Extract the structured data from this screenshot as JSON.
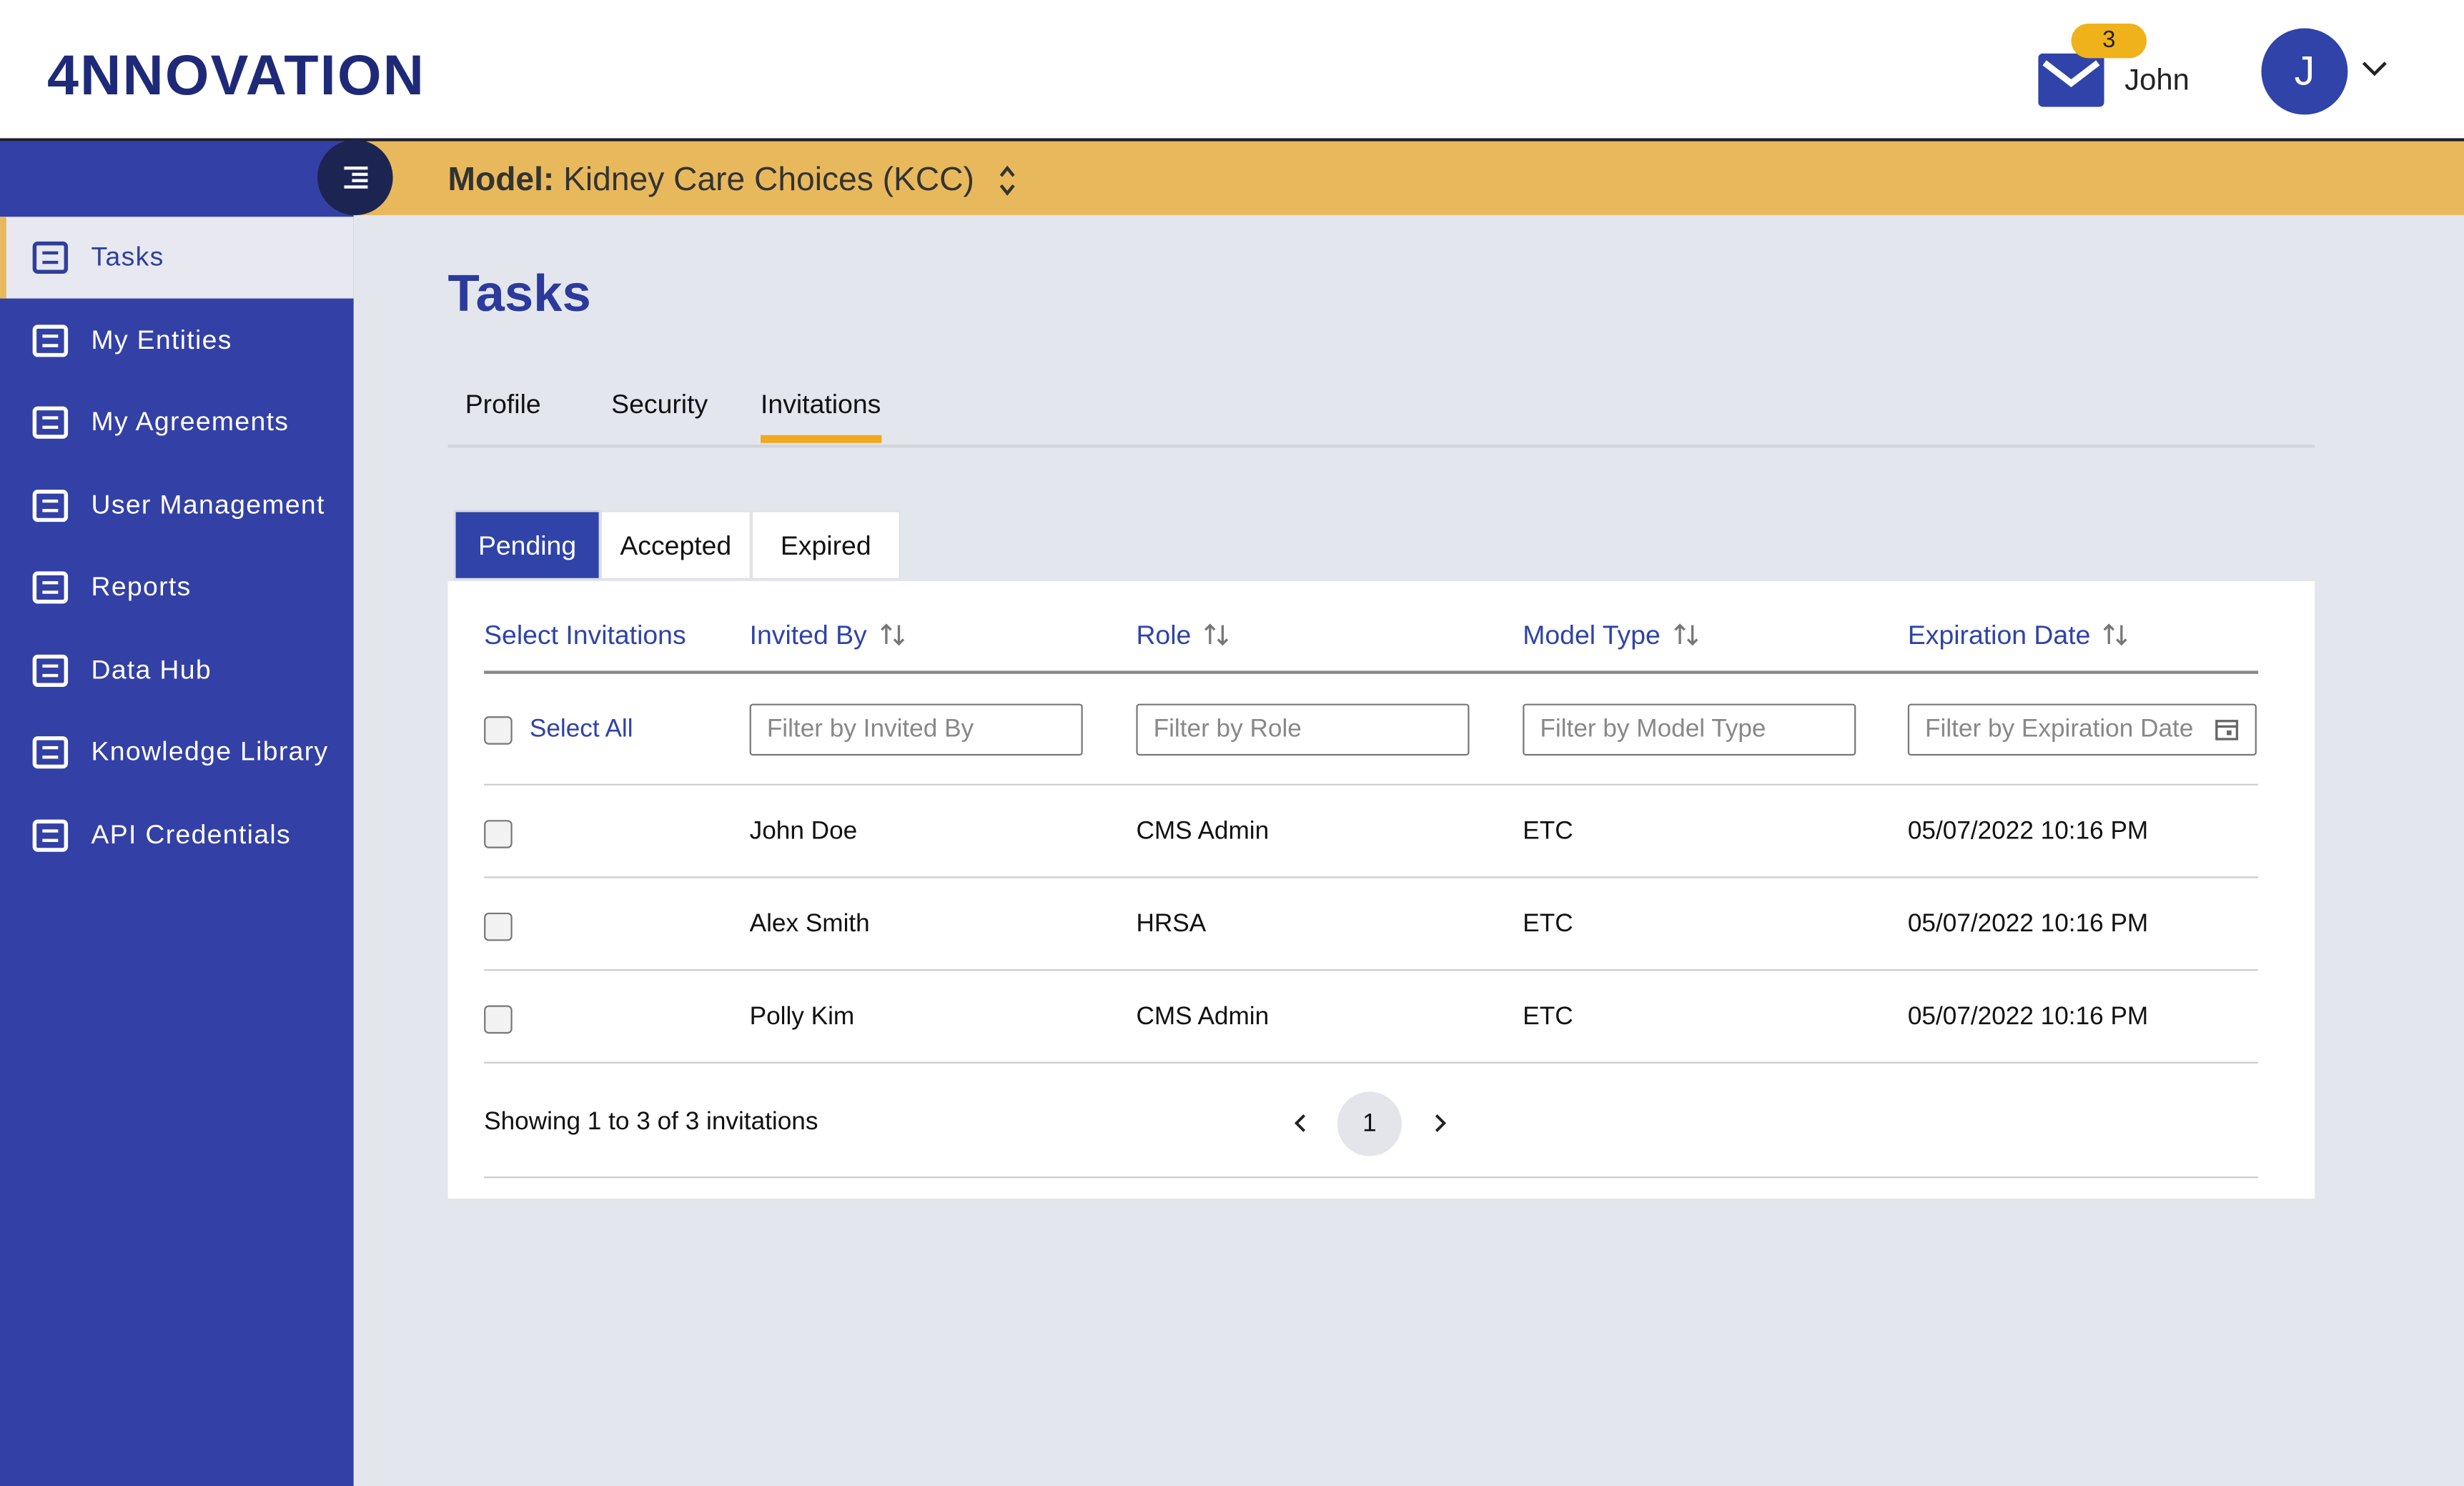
{
  "header": {
    "logo": "4NNOVATION",
    "notification_count": 3,
    "user_name": "John",
    "avatar": "J"
  },
  "sidebar": {
    "items": [
      "Tasks",
      "My Entities",
      "My Agreements",
      "User Management",
      "Reports",
      "Data Hub",
      "Knowledge Library",
      "API Credentials"
    ],
    "active": 0
  },
  "model_bar": {
    "label": "Model:",
    "value": "Kidney Care Choices (KCC)"
  },
  "page": {
    "title": "Tasks",
    "tabs": [
      "Profile",
      "Security",
      "Invitations"
    ],
    "active_tab": 2,
    "subtabs": [
      "Pending",
      "Accepted",
      "Expired"
    ],
    "active_subtab": 0
  },
  "table": {
    "columns": [
      "Select Invitations",
      "Invited By",
      "Role",
      "Model Type",
      "Expiration Date"
    ],
    "select_all": "Select All",
    "filters": [
      "Filter by Invited By",
      "Filter by Role",
      "Filter by Model Type",
      "Filter by Expiration Date"
    ],
    "rows": [
      [
        "John Doe",
        "CMS Admin",
        "ETC",
        "05/07/2022 10:16 PM"
      ],
      [
        "Alex Smith",
        "HRSA",
        "ETC",
        "05/07/2022 10:16 PM"
      ],
      [
        "Polly Kim",
        "CMS Admin",
        "ETC",
        "05/07/2022 10:16 PM"
      ]
    ],
    "footer": "Showing 1 to 3 of 3 invitations",
    "page": 1
  }
}
